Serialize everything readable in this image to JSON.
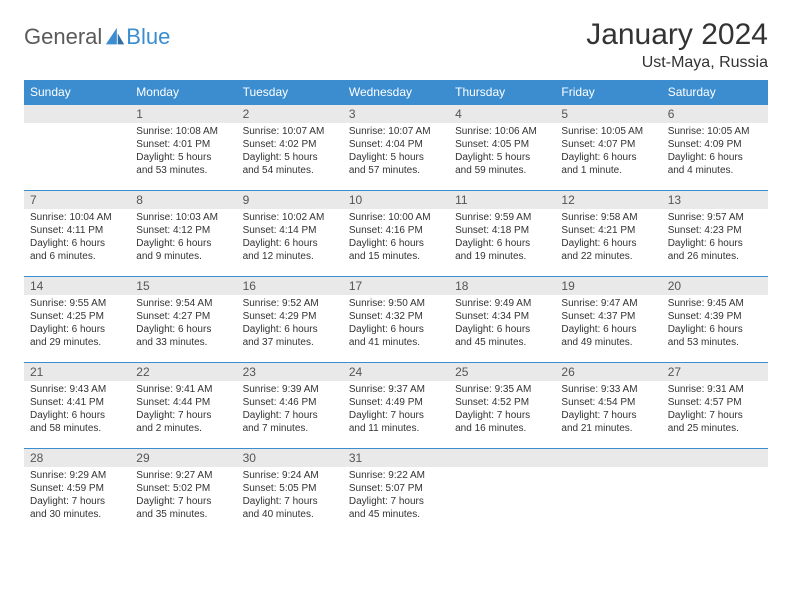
{
  "logo": {
    "text1": "General",
    "text2": "Blue"
  },
  "title": "January 2024",
  "subtitle": "Ust-Maya, Russia",
  "colors": {
    "header_bg": "#3b8dd0",
    "header_fg": "#ffffff",
    "daynum_bg": "#e9e9e9",
    "border": "#3b8dd0",
    "logo_gray": "#5a5a5a",
    "logo_blue": "#3b8dd0"
  },
  "weekdays": [
    "Sunday",
    "Monday",
    "Tuesday",
    "Wednesday",
    "Thursday",
    "Friday",
    "Saturday"
  ],
  "days": [
    {
      "n": "1",
      "sr": "10:08 AM",
      "ss": "4:01 PM",
      "dl": "5 hours and 53 minutes."
    },
    {
      "n": "2",
      "sr": "10:07 AM",
      "ss": "4:02 PM",
      "dl": "5 hours and 54 minutes."
    },
    {
      "n": "3",
      "sr": "10:07 AM",
      "ss": "4:04 PM",
      "dl": "5 hours and 57 minutes."
    },
    {
      "n": "4",
      "sr": "10:06 AM",
      "ss": "4:05 PM",
      "dl": "5 hours and 59 minutes."
    },
    {
      "n": "5",
      "sr": "10:05 AM",
      "ss": "4:07 PM",
      "dl": "6 hours and 1 minute."
    },
    {
      "n": "6",
      "sr": "10:05 AM",
      "ss": "4:09 PM",
      "dl": "6 hours and 4 minutes."
    },
    {
      "n": "7",
      "sr": "10:04 AM",
      "ss": "4:11 PM",
      "dl": "6 hours and 6 minutes."
    },
    {
      "n": "8",
      "sr": "10:03 AM",
      "ss": "4:12 PM",
      "dl": "6 hours and 9 minutes."
    },
    {
      "n": "9",
      "sr": "10:02 AM",
      "ss": "4:14 PM",
      "dl": "6 hours and 12 minutes."
    },
    {
      "n": "10",
      "sr": "10:00 AM",
      "ss": "4:16 PM",
      "dl": "6 hours and 15 minutes."
    },
    {
      "n": "11",
      "sr": "9:59 AM",
      "ss": "4:18 PM",
      "dl": "6 hours and 19 minutes."
    },
    {
      "n": "12",
      "sr": "9:58 AM",
      "ss": "4:21 PM",
      "dl": "6 hours and 22 minutes."
    },
    {
      "n": "13",
      "sr": "9:57 AM",
      "ss": "4:23 PM",
      "dl": "6 hours and 26 minutes."
    },
    {
      "n": "14",
      "sr": "9:55 AM",
      "ss": "4:25 PM",
      "dl": "6 hours and 29 minutes."
    },
    {
      "n": "15",
      "sr": "9:54 AM",
      "ss": "4:27 PM",
      "dl": "6 hours and 33 minutes."
    },
    {
      "n": "16",
      "sr": "9:52 AM",
      "ss": "4:29 PM",
      "dl": "6 hours and 37 minutes."
    },
    {
      "n": "17",
      "sr": "9:50 AM",
      "ss": "4:32 PM",
      "dl": "6 hours and 41 minutes."
    },
    {
      "n": "18",
      "sr": "9:49 AM",
      "ss": "4:34 PM",
      "dl": "6 hours and 45 minutes."
    },
    {
      "n": "19",
      "sr": "9:47 AM",
      "ss": "4:37 PM",
      "dl": "6 hours and 49 minutes."
    },
    {
      "n": "20",
      "sr": "9:45 AM",
      "ss": "4:39 PM",
      "dl": "6 hours and 53 minutes."
    },
    {
      "n": "21",
      "sr": "9:43 AM",
      "ss": "4:41 PM",
      "dl": "6 hours and 58 minutes."
    },
    {
      "n": "22",
      "sr": "9:41 AM",
      "ss": "4:44 PM",
      "dl": "7 hours and 2 minutes."
    },
    {
      "n": "23",
      "sr": "9:39 AM",
      "ss": "4:46 PM",
      "dl": "7 hours and 7 minutes."
    },
    {
      "n": "24",
      "sr": "9:37 AM",
      "ss": "4:49 PM",
      "dl": "7 hours and 11 minutes."
    },
    {
      "n": "25",
      "sr": "9:35 AM",
      "ss": "4:52 PM",
      "dl": "7 hours and 16 minutes."
    },
    {
      "n": "26",
      "sr": "9:33 AM",
      "ss": "4:54 PM",
      "dl": "7 hours and 21 minutes."
    },
    {
      "n": "27",
      "sr": "9:31 AM",
      "ss": "4:57 PM",
      "dl": "7 hours and 25 minutes."
    },
    {
      "n": "28",
      "sr": "9:29 AM",
      "ss": "4:59 PM",
      "dl": "7 hours and 30 minutes."
    },
    {
      "n": "29",
      "sr": "9:27 AM",
      "ss": "5:02 PM",
      "dl": "7 hours and 35 minutes."
    },
    {
      "n": "30",
      "sr": "9:24 AM",
      "ss": "5:05 PM",
      "dl": "7 hours and 40 minutes."
    },
    {
      "n": "31",
      "sr": "9:22 AM",
      "ss": "5:07 PM",
      "dl": "7 hours and 45 minutes."
    }
  ],
  "labels": {
    "sunrise": "Sunrise:",
    "sunset": "Sunset:",
    "daylight": "Daylight:"
  },
  "layout": {
    "first_day_offset": 1,
    "total_cells": 35
  }
}
